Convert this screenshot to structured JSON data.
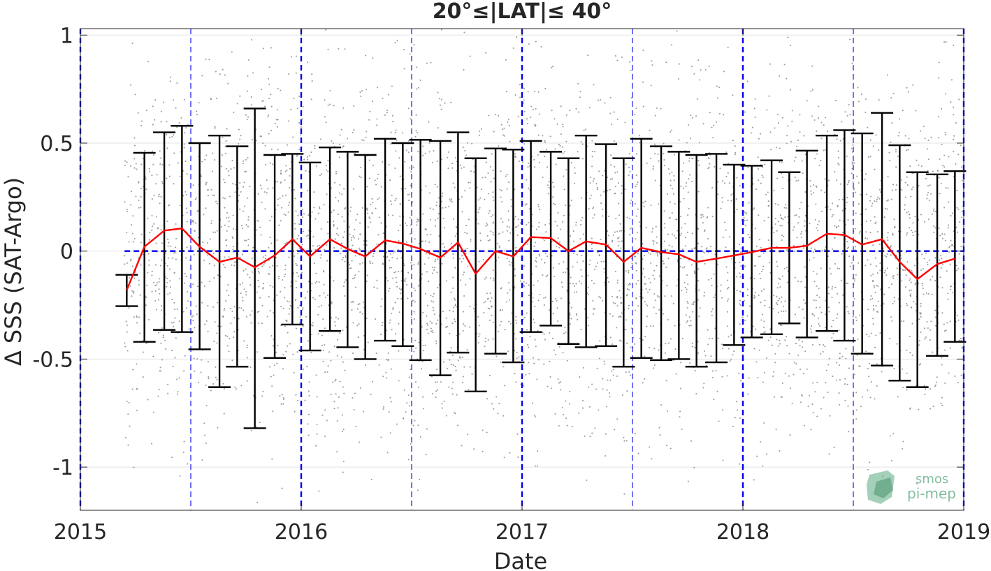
{
  "chart_data": {
    "type": "scatter",
    "title": "20°≤|LAT|≤ 40°",
    "xlabel": "Date",
    "ylabel": "Δ SSS (SAT-Argo)",
    "xlim": [
      2015.0,
      2019.0
    ],
    "ylim": [
      -1.2,
      1.03
    ],
    "x_ticks": [
      2015,
      2016,
      2017,
      2018,
      2019
    ],
    "x_tick_labels": [
      "2015",
      "2016",
      "2017",
      "2018",
      "2019"
    ],
    "y_ticks": [
      1,
      0.5,
      0,
      -0.5,
      -1
    ],
    "y_tick_labels": [
      "1",
      "0.5",
      "0",
      "-0.5",
      "-1"
    ],
    "grid": true,
    "reference_lines": {
      "zero_line_y": 0,
      "year_lines": [
        2015,
        2016,
        2017,
        2018,
        2019
      ],
      "half_year_lines": [
        2015.5,
        2016.5,
        2017.5,
        2018.5
      ],
      "color": "#0000ee"
    },
    "scatter_cloud": {
      "description": "individual SAT-Argo differences",
      "x_range": [
        2015.2,
        2019.0
      ],
      "y_range": [
        -1.2,
        1.03
      ],
      "color": "#8c8c8c"
    },
    "series": [
      {
        "type": "line",
        "color": "#ff0000",
        "x": [
          2015.21,
          2015.29,
          2015.38,
          2015.46,
          2015.54,
          2015.63,
          2015.71,
          2015.79,
          2015.88,
          2015.96,
          2016.04,
          2016.13,
          2016.21,
          2016.29,
          2016.38,
          2016.46,
          2016.54,
          2016.63,
          2016.71,
          2016.79,
          2016.88,
          2016.96,
          2017.04,
          2017.13,
          2017.21,
          2017.29,
          2017.38,
          2017.46,
          2017.54,
          2017.63,
          2017.71,
          2017.79,
          2017.88,
          2017.96,
          2018.04,
          2018.13,
          2018.21,
          2018.29,
          2018.38,
          2018.46,
          2018.54,
          2018.63,
          2018.71,
          2018.79,
          2018.88,
          2018.96
        ],
        "y": [
          -0.18,
          0.02,
          0.095,
          0.105,
          0.02,
          -0.05,
          -0.03,
          -0.075,
          -0.02,
          0.055,
          -0.025,
          0.055,
          0.01,
          -0.025,
          0.05,
          0.035,
          0.01,
          -0.03,
          0.04,
          -0.105,
          0.0,
          -0.025,
          0.065,
          0.06,
          0.0,
          0.045,
          0.03,
          -0.05,
          0.015,
          -0.005,
          -0.015,
          -0.05,
          -0.035,
          -0.02,
          -0.005,
          0.015,
          0.015,
          0.025,
          0.08,
          0.075,
          0.03,
          0.055,
          -0.05,
          -0.13,
          -0.06,
          -0.035
        ]
      },
      {
        "type": "errorbar",
        "color": "#000000",
        "x": [
          2015.21,
          2015.29,
          2015.38,
          2015.46,
          2015.54,
          2015.63,
          2015.71,
          2015.79,
          2015.88,
          2015.96,
          2016.04,
          2016.13,
          2016.21,
          2016.29,
          2016.38,
          2016.46,
          2016.54,
          2016.63,
          2016.71,
          2016.79,
          2016.88,
          2016.96,
          2017.04,
          2017.13,
          2017.21,
          2017.29,
          2017.38,
          2017.46,
          2017.54,
          2017.63,
          2017.71,
          2017.79,
          2017.88,
          2017.96,
          2018.04,
          2018.13,
          2018.21,
          2018.29,
          2018.38,
          2018.46,
          2018.54,
          2018.63,
          2018.71,
          2018.79,
          2018.88,
          2018.96
        ],
        "upper": [
          -0.11,
          0.455,
          0.55,
          0.58,
          0.5,
          0.535,
          0.485,
          0.66,
          0.445,
          0.45,
          0.41,
          0.48,
          0.46,
          0.445,
          0.52,
          0.5,
          0.515,
          0.51,
          0.55,
          0.43,
          0.475,
          0.47,
          0.51,
          0.46,
          0.43,
          0.535,
          0.495,
          0.43,
          0.52,
          0.485,
          0.46,
          0.445,
          0.45,
          0.4,
          0.395,
          0.42,
          0.365,
          0.465,
          0.535,
          0.56,
          0.545,
          0.64,
          0.49,
          0.365,
          0.355,
          0.37
        ],
        "lower": [
          -0.255,
          -0.42,
          -0.365,
          -0.375,
          -0.455,
          -0.63,
          -0.535,
          -0.82,
          -0.495,
          -0.34,
          -0.46,
          -0.37,
          -0.445,
          -0.5,
          -0.415,
          -0.44,
          -0.505,
          -0.575,
          -0.47,
          -0.65,
          -0.475,
          -0.515,
          -0.375,
          -0.345,
          -0.43,
          -0.445,
          -0.44,
          -0.535,
          -0.495,
          -0.505,
          -0.5,
          -0.535,
          -0.515,
          -0.435,
          -0.4,
          -0.385,
          -0.335,
          -0.4,
          -0.37,
          -0.415,
          -0.475,
          -0.53,
          -0.6,
          -0.63,
          -0.485,
          -0.42
        ]
      }
    ]
  },
  "watermark": {
    "line1": "smos",
    "line2": "pi-mep",
    "color": "#5aa87e"
  }
}
